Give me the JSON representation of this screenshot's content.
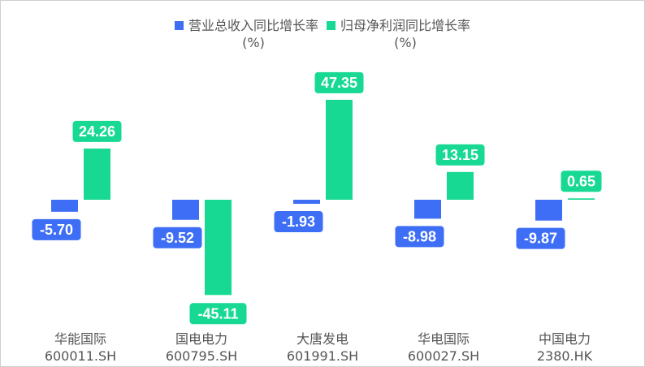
{
  "chart_data": {
    "type": "bar",
    "categories": [
      {
        "name": "华能国际",
        "code": "600011.SH"
      },
      {
        "name": "国电电力",
        "code": "600795.SH"
      },
      {
        "name": "大唐发电",
        "code": "601991.SH"
      },
      {
        "name": "华电国际",
        "code": "600027.SH"
      },
      {
        "name": "中国电力",
        "code": "2380.HK"
      }
    ],
    "series": [
      {
        "name": "营业总收入同比增长率",
        "unit": "(%)",
        "color": "#3d6ef5",
        "values": [
          -5.7,
          -9.52,
          -1.93,
          -8.98,
          -9.87
        ],
        "labels": [
          "-5.70",
          "-9.52",
          "-1.93",
          "-8.98",
          "-9.87"
        ]
      },
      {
        "name": "归母净利润同比增长率",
        "unit": "(%)",
        "color": "#17d993",
        "values": [
          24.26,
          -45.11,
          47.35,
          13.15,
          0.65
        ],
        "labels": [
          "24.26",
          "-45.11",
          "47.35",
          "13.15",
          "0.65"
        ]
      }
    ],
    "legend_position": "top",
    "grid": false
  }
}
